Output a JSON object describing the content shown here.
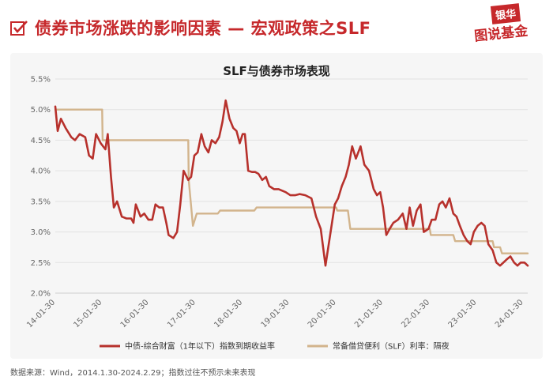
{
  "header": {
    "title": "债券市场涨跌的影响因素 — 宏观政策之SLF",
    "brand_badge": "银华",
    "brand_name": "图说基金"
  },
  "colors": {
    "accent": "#c6282b",
    "series_yield": "#b7312c",
    "series_slf": "#d2b48c"
  },
  "footnote": "数据来源：Wind，2014.1.30-2024.2.29；指数过往不预示未来表现",
  "chart_data": {
    "type": "line",
    "title": "SLF与债券市场表现",
    "xlabel": "",
    "ylabel": "",
    "ylim": [
      2.0,
      5.5
    ],
    "yticks": [
      "2.0%",
      "2.5%",
      "3.0%",
      "3.5%",
      "4.0%",
      "4.5%",
      "5.0%",
      "5.5%"
    ],
    "ytick_values": [
      2.0,
      2.5,
      3.0,
      3.5,
      4.0,
      4.5,
      5.0,
      5.5
    ],
    "xlim": [
      2014.08,
      2024.17
    ],
    "xticks": [
      "14-01-30",
      "15-01-30",
      "16-01-30",
      "17-01-30",
      "18-01-30",
      "19-01-30",
      "20-01-30",
      "21-01-30",
      "22-01-30",
      "23-01-30",
      "24-01-30"
    ],
    "xtick_values": [
      2014.08,
      2015.08,
      2016.08,
      2017.08,
      2018.08,
      2019.08,
      2020.08,
      2021.08,
      2022.08,
      2023.08,
      2024.08
    ],
    "grid": true,
    "legend_position": "bottom",
    "series": [
      {
        "name": "中债-综合财富（1年以下）指数到期收益率",
        "x": [
          2014.08,
          2014.13,
          2014.2,
          2014.3,
          2014.42,
          2014.5,
          2014.6,
          2014.72,
          2014.8,
          2014.88,
          2014.95,
          2015.05,
          2015.15,
          2015.2,
          2015.27,
          2015.33,
          2015.4,
          2015.5,
          2015.6,
          2015.7,
          2015.75,
          2015.8,
          2015.9,
          2015.98,
          2016.07,
          2016.15,
          2016.22,
          2016.3,
          2016.38,
          2016.45,
          2016.5,
          2016.6,
          2016.68,
          2016.75,
          2016.82,
          2016.92,
          2016.98,
          2017.05,
          2017.12,
          2017.2,
          2017.27,
          2017.35,
          2017.42,
          2017.5,
          2017.58,
          2017.65,
          2017.72,
          2017.8,
          2017.88,
          2017.95,
          2018.02,
          2018.08,
          2018.13,
          2018.2,
          2018.28,
          2018.35,
          2018.42,
          2018.5,
          2018.58,
          2018.65,
          2018.75,
          2018.85,
          2019.0,
          2019.1,
          2019.2,
          2019.3,
          2019.42,
          2019.55,
          2019.65,
          2019.75,
          2019.85,
          2019.95,
          2020.05,
          2020.12,
          2020.2,
          2020.28,
          2020.35,
          2020.42,
          2020.5,
          2020.6,
          2020.68,
          2020.78,
          2020.88,
          2020.95,
          2021.02,
          2021.08,
          2021.15,
          2021.22,
          2021.3,
          2021.4,
          2021.5,
          2021.58,
          2021.65,
          2021.72,
          2021.8,
          2021.88,
          2021.95,
          2022.05,
          2022.12,
          2022.2,
          2022.28,
          2022.35,
          2022.42,
          2022.5,
          2022.58,
          2022.65,
          2022.72,
          2022.8,
          2022.88,
          2022.95,
          2023.02,
          2023.1,
          2023.18,
          2023.25,
          2023.33,
          2023.42,
          2023.5,
          2023.58,
          2023.65,
          2023.72,
          2023.8,
          2023.88,
          2023.95,
          2024.02,
          2024.1,
          2024.17
        ],
        "values": [
          5.05,
          4.65,
          4.85,
          4.7,
          4.55,
          4.5,
          4.6,
          4.55,
          4.25,
          4.2,
          4.6,
          4.45,
          4.35,
          4.6,
          3.9,
          3.4,
          3.5,
          3.25,
          3.22,
          3.22,
          3.15,
          3.45,
          3.25,
          3.3,
          3.2,
          3.2,
          3.45,
          3.4,
          3.4,
          3.15,
          2.95,
          2.9,
          3.0,
          3.45,
          4.0,
          3.85,
          3.9,
          4.25,
          4.3,
          4.6,
          4.4,
          4.3,
          4.5,
          4.45,
          4.55,
          4.8,
          5.15,
          4.85,
          4.7,
          4.65,
          4.45,
          4.6,
          4.6,
          4.0,
          3.98,
          3.98,
          3.95,
          3.85,
          3.9,
          3.75,
          3.7,
          3.7,
          3.65,
          3.6,
          3.6,
          3.62,
          3.6,
          3.55,
          3.25,
          3.05,
          2.45,
          2.95,
          3.45,
          3.55,
          3.75,
          3.9,
          4.1,
          4.4,
          4.2,
          4.4,
          4.1,
          4.0,
          3.7,
          3.6,
          3.65,
          3.4,
          2.95,
          3.05,
          3.15,
          3.2,
          3.3,
          3.05,
          3.4,
          3.1,
          3.35,
          3.45,
          3.0,
          3.05,
          3.2,
          3.2,
          3.45,
          3.5,
          3.4,
          3.55,
          3.3,
          3.25,
          3.1,
          2.95,
          2.85,
          2.8,
          3.0,
          3.1,
          3.15,
          3.1,
          2.8,
          2.7,
          2.5,
          2.45,
          2.5,
          2.55,
          2.6,
          2.5,
          2.45,
          2.5,
          2.5,
          2.45
        ]
      },
      {
        "name": "常备借贷便利（SLF）利率：隔夜",
        "x": [
          2014.08,
          2015.08,
          2015.09,
          2016.92,
          2016.93,
          2017.02,
          2017.1,
          2017.55,
          2017.6,
          2018.33,
          2018.38,
          2020.08,
          2020.1,
          2020.33,
          2020.38,
          2022.08,
          2022.1,
          2022.58,
          2022.62,
          2023.42,
          2023.45,
          2023.58,
          2023.62,
          2024.17
        ],
        "values": [
          5.0,
          5.0,
          4.5,
          4.5,
          3.85,
          3.1,
          3.3,
          3.3,
          3.35,
          3.35,
          3.4,
          3.4,
          3.35,
          3.35,
          3.05,
          3.05,
          2.95,
          2.95,
          2.85,
          2.85,
          2.75,
          2.75,
          2.65,
          2.65
        ]
      }
    ]
  }
}
